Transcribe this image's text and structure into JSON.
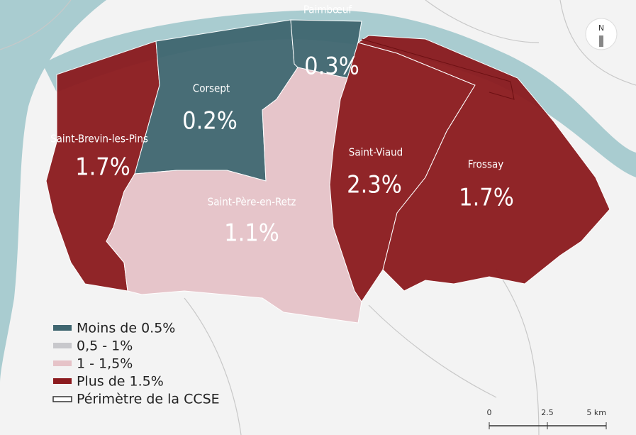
{
  "regions": [
    {
      "name": "Paimbœuf",
      "value": "0.3%"
    },
    {
      "name": "Corsept",
      "value": "0.2%"
    },
    {
      "name": "Saint-Brevin-les-Pins",
      "value": "1.7%"
    },
    {
      "name": "Saint-Père-en-Retz",
      "value": "1.1%"
    },
    {
      "name": "Saint-Viaud",
      "value": "2.3%"
    },
    {
      "name": "Frossay",
      "value": "1.7%"
    }
  ],
  "legend": [
    "Moins de 0.5%",
    "0,5 - 1%",
    "1 - 1,5%",
    "Plus de 1.5%",
    "Périmètre de la CCSE"
  ],
  "north": "N",
  "scale": [
    "0",
    "2.5",
    "5 km"
  ]
}
